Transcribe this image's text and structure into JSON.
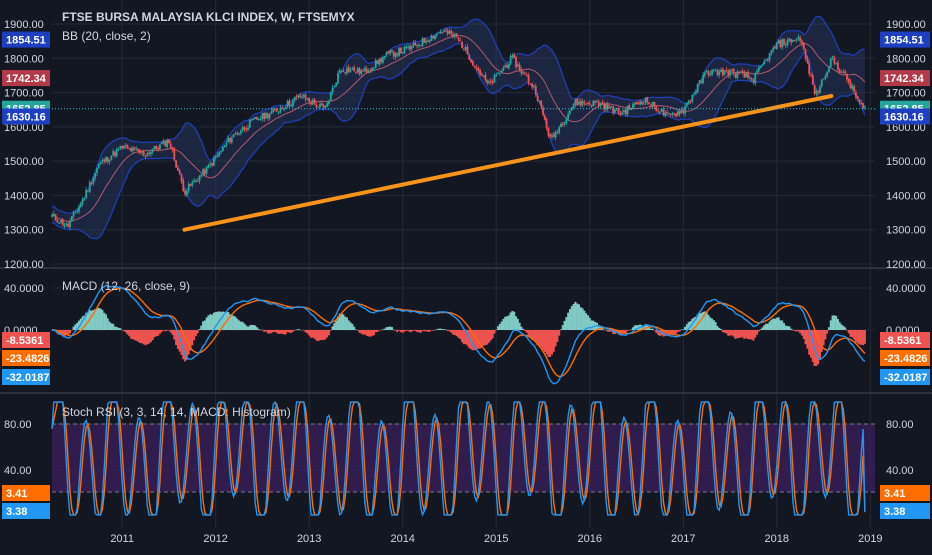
{
  "header": {
    "symbol_title": "FTSE BURSA MALAYSIA KLCI INDEX, W, FTSEMYX",
    "bb_label": "BB (20, close, 2)"
  },
  "colors": {
    "background": "#131722",
    "grid": "#2a2e39",
    "text": "#d1d4dc",
    "up": "#26a69a",
    "down": "#ef5350",
    "bb_band": "#1e3fbf",
    "bb_fill": "#2b3a66",
    "bb_basis": "#b35a6a",
    "trendline": "#f7931a",
    "macd": "#2196f3",
    "signal": "#ff6d00",
    "hist_pos": "#80cbc4",
    "hist_neg": "#ef5350",
    "stoch_k": "#2196f3",
    "stoch_d": "#ff6d00",
    "stoch_fill": "#3b1f5c",
    "current_price": "#26c6da"
  },
  "price_axis": {
    "ticks": [
      "1900.00",
      "1800.00",
      "1700.00",
      "1600.00",
      "1500.00",
      "1400.00",
      "1300.00",
      "1200.00"
    ],
    "badges": [
      {
        "text": "1854.51",
        "color": "#1e3fbf"
      },
      {
        "text": "1742.34",
        "color": "#b23a48"
      },
      {
        "text": "1652.85",
        "color": "#26a69a"
      },
      {
        "text": "1630.16",
        "color": "#1e3fbf"
      }
    ]
  },
  "macd_panel": {
    "label": "MACD (12, 26, close, 9)",
    "ticks": [
      "40.0000",
      "0.0000"
    ],
    "badges": [
      {
        "text": "-8.5361",
        "color": "#ef5350"
      },
      {
        "text": "-23.4826",
        "color": "#ff6d00"
      },
      {
        "text": "-32.0187",
        "color": "#2196f3"
      }
    ]
  },
  "stoch_panel": {
    "label": "Stoch RSI (3, 3, 14, 14, MACD: Histogram)",
    "ticks": [
      "80.00",
      "40.00"
    ],
    "badges": [
      {
        "text": "3.41",
        "color": "#ff6d00"
      },
      {
        "text": "3.38",
        "color": "#2196f3"
      }
    ]
  },
  "time_axis": {
    "labels": [
      "2011",
      "2012",
      "2013",
      "2014",
      "2015",
      "2016",
      "2017",
      "2018",
      "2019"
    ]
  },
  "chart_data": {
    "type": "candlestick",
    "title": "FTSE BURSA MALAYSIA KLCI INDEX, W, FTSEMYX",
    "x_range": [
      "2010-04",
      "2019-01"
    ],
    "ylim": [
      1200,
      1935
    ],
    "series": [
      {
        "name": "FTSE BURSA MALAYSIA KLCI INDEX (approx. close)",
        "points": [
          [
            "2010-04",
            1340
          ],
          [
            "2010-06",
            1310
          ],
          [
            "2010-08",
            1390
          ],
          [
            "2010-10",
            1490
          ],
          [
            "2011-01",
            1540
          ],
          [
            "2011-04",
            1520
          ],
          [
            "2011-07",
            1560
          ],
          [
            "2011-09",
            1410
          ],
          [
            "2011-12",
            1480
          ],
          [
            "2012-03",
            1570
          ],
          [
            "2012-06",
            1620
          ],
          [
            "2012-09",
            1650
          ],
          [
            "2012-12",
            1690
          ],
          [
            "2013-03",
            1650
          ],
          [
            "2013-05",
            1770
          ],
          [
            "2013-08",
            1760
          ],
          [
            "2013-11",
            1810
          ],
          [
            "2014-02",
            1830
          ],
          [
            "2014-06",
            1880
          ],
          [
            "2014-08",
            1860
          ],
          [
            "2014-12",
            1720
          ],
          [
            "2015-03",
            1800
          ],
          [
            "2015-06",
            1710
          ],
          [
            "2015-08",
            1560
          ],
          [
            "2015-11",
            1670
          ],
          [
            "2016-02",
            1670
          ],
          [
            "2016-05",
            1640
          ],
          [
            "2016-08",
            1680
          ],
          [
            "2016-11",
            1630
          ],
          [
            "2017-01",
            1650
          ],
          [
            "2017-04",
            1760
          ],
          [
            "2017-07",
            1760
          ],
          [
            "2017-10",
            1740
          ],
          [
            "2018-01",
            1840
          ],
          [
            "2018-04",
            1860
          ],
          [
            "2018-06",
            1690
          ],
          [
            "2018-08",
            1800
          ],
          [
            "2018-10",
            1740
          ],
          [
            "2018-12",
            1652.85
          ]
        ]
      }
    ],
    "trendline": {
      "from": [
        "2011-09",
        1300
      ],
      "to": [
        "2018-08",
        1690
      ]
    },
    "values": {
      "bb_upper": 1854.51,
      "bb_basis": 1742.34,
      "close": 1652.85,
      "bb_lower": 1630.16,
      "macd_histogram": -8.5361,
      "macd_signal": -23.4826,
      "macd": -32.0187,
      "stoch_d": 3.41,
      "stoch_k": 3.38
    }
  }
}
